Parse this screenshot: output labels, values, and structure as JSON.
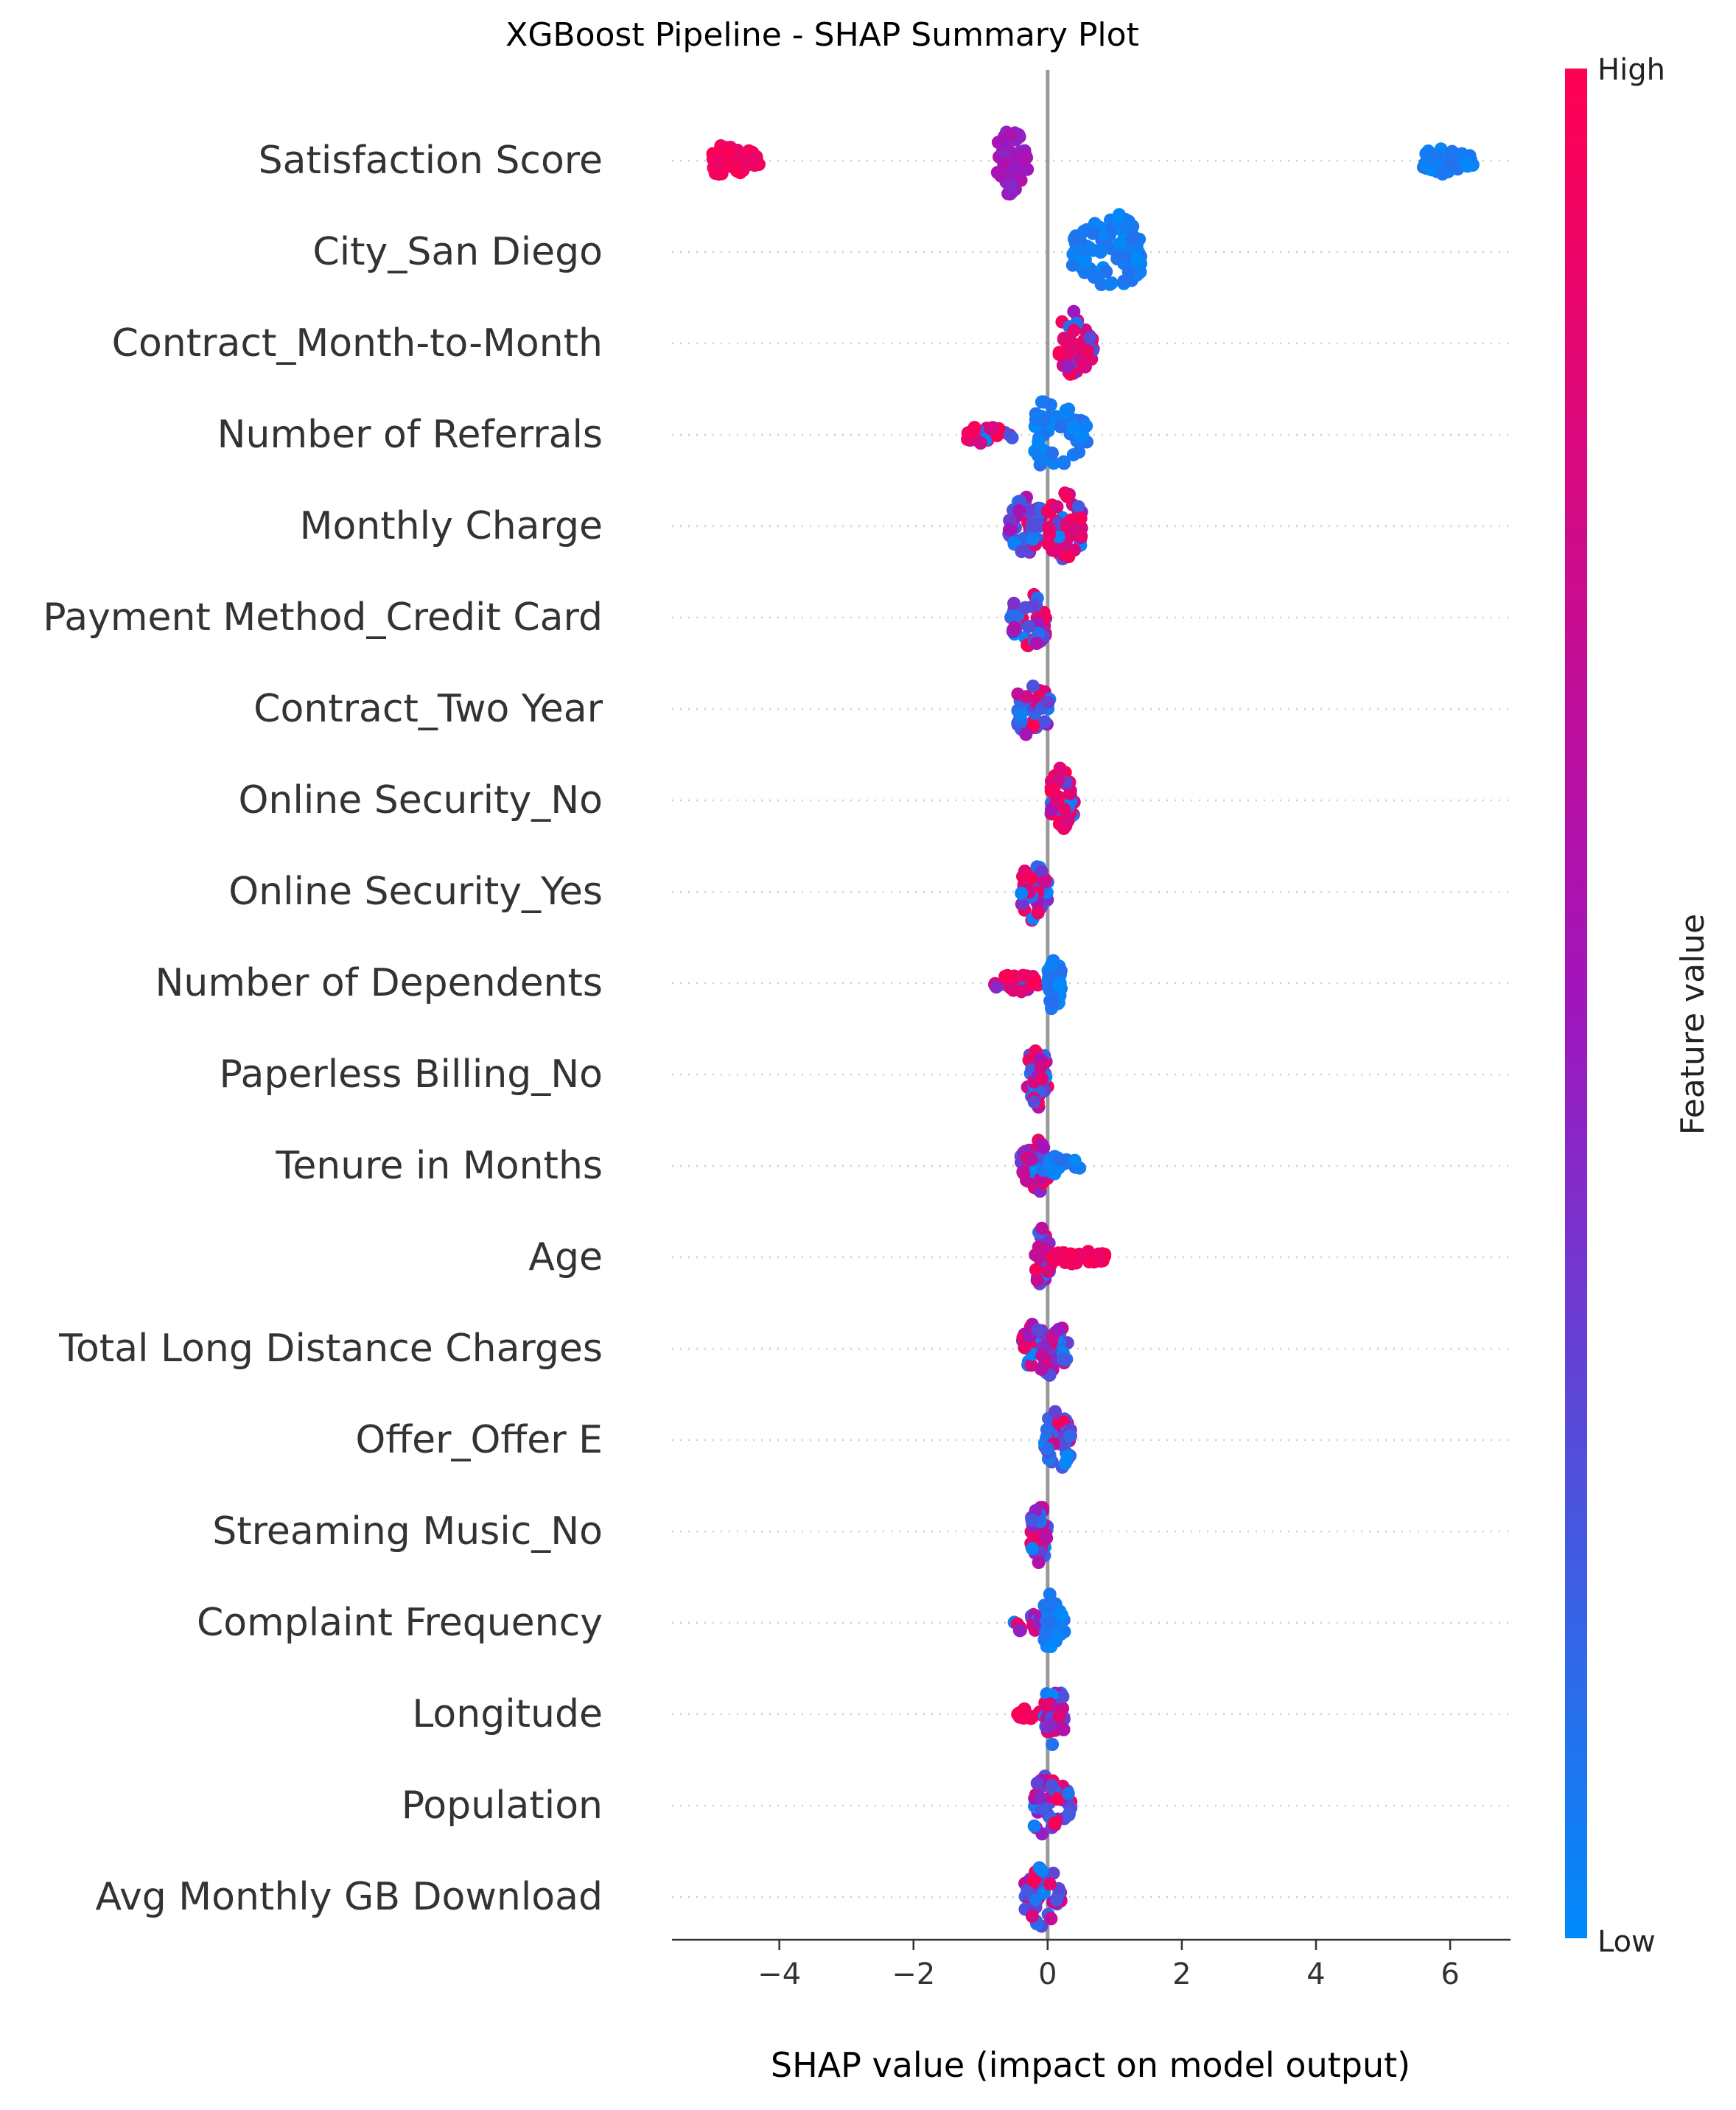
{
  "chart_data": {
    "type": "scatter",
    "title": "XGBoost Pipeline - SHAP Summary Plot",
    "xlabel": "SHAP value (impact on model output)",
    "xlim": [
      -5.6,
      6.9
    ],
    "xticks": [
      -4,
      -2,
      0,
      2,
      4,
      6
    ],
    "xtick_labels": [
      "−4",
      "−2",
      "0",
      "2",
      "4",
      "6"
    ],
    "colorbar": {
      "label": "Feature value",
      "high_label": "High",
      "low_label": "Low",
      "high_color": "#ff0052",
      "mid_color": "#a115bd",
      "low_color": "#008bfb"
    },
    "features": [
      {
        "name": "Satisfaction Score",
        "clusters": [
          {
            "min": -5.0,
            "max": -4.3,
            "center": -4.75,
            "spread": 0.45,
            "count": 70,
            "color": "high"
          },
          {
            "min": -0.75,
            "max": -0.3,
            "center": -0.55,
            "spread": 0.9,
            "count": 55,
            "color": "mid"
          },
          {
            "min": 5.6,
            "max": 6.35,
            "center": 5.9,
            "spread": 0.35,
            "count": 60,
            "color": "low"
          }
        ]
      },
      {
        "name": "City_San Diego",
        "clusters": [
          {
            "min": 0.35,
            "max": 1.4,
            "center": 1.0,
            "spread": 1.0,
            "count": 110,
            "color": "low"
          }
        ]
      },
      {
        "name": "Contract_Month-to-Month",
        "clusters": [
          {
            "min": 0.15,
            "max": 0.7,
            "center": 0.4,
            "spread": 0.85,
            "count": 50,
            "color": "mixhigh"
          }
        ]
      },
      {
        "name": "Number of Referrals",
        "clusters": [
          {
            "min": -1.2,
            "max": -0.45,
            "center": -0.9,
            "spread": 0.25,
            "count": 30,
            "color": "mixhigh"
          },
          {
            "min": -0.2,
            "max": 0.6,
            "center": 0.05,
            "spread": 1.0,
            "count": 55,
            "color": "low"
          }
        ]
      },
      {
        "name": "Monthly Charge",
        "clusters": [
          {
            "min": -0.6,
            "max": -0.1,
            "center": -0.35,
            "spread": 0.9,
            "count": 50,
            "color": "mixlow"
          },
          {
            "min": 0.0,
            "max": 0.55,
            "center": 0.25,
            "spread": 0.9,
            "count": 50,
            "color": "mixhigh"
          }
        ]
      },
      {
        "name": "Payment Method_Credit Card",
        "clusters": [
          {
            "min": -0.55,
            "max": 0.0,
            "center": -0.25,
            "spread": 0.8,
            "count": 50,
            "color": "mix"
          }
        ]
      },
      {
        "name": "Contract_Two Year",
        "clusters": [
          {
            "min": -0.45,
            "max": 0.05,
            "center": -0.25,
            "spread": 0.8,
            "count": 40,
            "color": "mixlow"
          }
        ]
      },
      {
        "name": "Online Security_No",
        "clusters": [
          {
            "min": 0.05,
            "max": 0.4,
            "center": 0.2,
            "spread": 0.85,
            "count": 50,
            "color": "mixhigh"
          }
        ]
      },
      {
        "name": "Online Security_Yes",
        "clusters": [
          {
            "min": -0.4,
            "max": 0.0,
            "center": -0.2,
            "spread": 0.85,
            "count": 45,
            "color": "mix"
          }
        ]
      },
      {
        "name": "Number of Dependents",
        "clusters": [
          {
            "min": -0.8,
            "max": -0.1,
            "center": -0.45,
            "spread": 0.25,
            "count": 30,
            "color": "mixhigh"
          },
          {
            "min": 0.0,
            "max": 0.2,
            "center": 0.1,
            "spread": 0.8,
            "count": 40,
            "color": "low"
          }
        ]
      },
      {
        "name": "Paperless Billing_No",
        "clusters": [
          {
            "min": -0.3,
            "max": 0.0,
            "center": -0.15,
            "spread": 0.85,
            "count": 45,
            "color": "mix"
          }
        ]
      },
      {
        "name": "Tenure in Months",
        "clusters": [
          {
            "min": -0.4,
            "max": 0.0,
            "center": -0.15,
            "spread": 0.75,
            "count": 45,
            "color": "mix"
          },
          {
            "min": 0.0,
            "max": 0.5,
            "center": 0.2,
            "spread": 0.3,
            "count": 20,
            "color": "low"
          }
        ]
      },
      {
        "name": "Age",
        "clusters": [
          {
            "min": -0.2,
            "max": 0.05,
            "center": -0.1,
            "spread": 0.75,
            "count": 30,
            "color": "mix"
          },
          {
            "min": 0.05,
            "max": 0.85,
            "center": 0.45,
            "spread": 0.18,
            "count": 40,
            "color": "high"
          }
        ]
      },
      {
        "name": "Total Long Distance Charges",
        "clusters": [
          {
            "min": -0.4,
            "max": 0.3,
            "center": -0.05,
            "spread": 0.85,
            "count": 60,
            "color": "mix"
          }
        ]
      },
      {
        "name": "Offer_Offer E",
        "clusters": [
          {
            "min": -0.05,
            "max": 0.35,
            "center": 0.15,
            "spread": 0.85,
            "count": 45,
            "color": "mixlow"
          }
        ]
      },
      {
        "name": "Streaming Music_No",
        "clusters": [
          {
            "min": -0.25,
            "max": 0.0,
            "center": -0.12,
            "spread": 0.85,
            "count": 40,
            "color": "mix"
          }
        ]
      },
      {
        "name": "Complaint Frequency",
        "clusters": [
          {
            "min": -0.5,
            "max": -0.05,
            "center": -0.3,
            "spread": 0.3,
            "count": 25,
            "color": "mixhigh"
          },
          {
            "min": -0.05,
            "max": 0.25,
            "center": 0.05,
            "spread": 0.8,
            "count": 40,
            "color": "low"
          }
        ]
      },
      {
        "name": "Longitude",
        "clusters": [
          {
            "min": -0.45,
            "max": -0.05,
            "center": -0.3,
            "spread": 0.15,
            "count": 20,
            "color": "high"
          },
          {
            "min": -0.05,
            "max": 0.25,
            "center": 0.1,
            "spread": 0.85,
            "count": 45,
            "color": "mix"
          }
        ]
      },
      {
        "name": "Population",
        "clusters": [
          {
            "min": -0.2,
            "max": 0.35,
            "center": 0.0,
            "spread": 0.85,
            "count": 50,
            "color": "mix"
          }
        ]
      },
      {
        "name": "Avg Monthly GB Download",
        "clusters": [
          {
            "min": -0.35,
            "max": 0.2,
            "center": -0.05,
            "spread": 0.85,
            "count": 50,
            "color": "mixlow"
          }
        ]
      }
    ]
  }
}
